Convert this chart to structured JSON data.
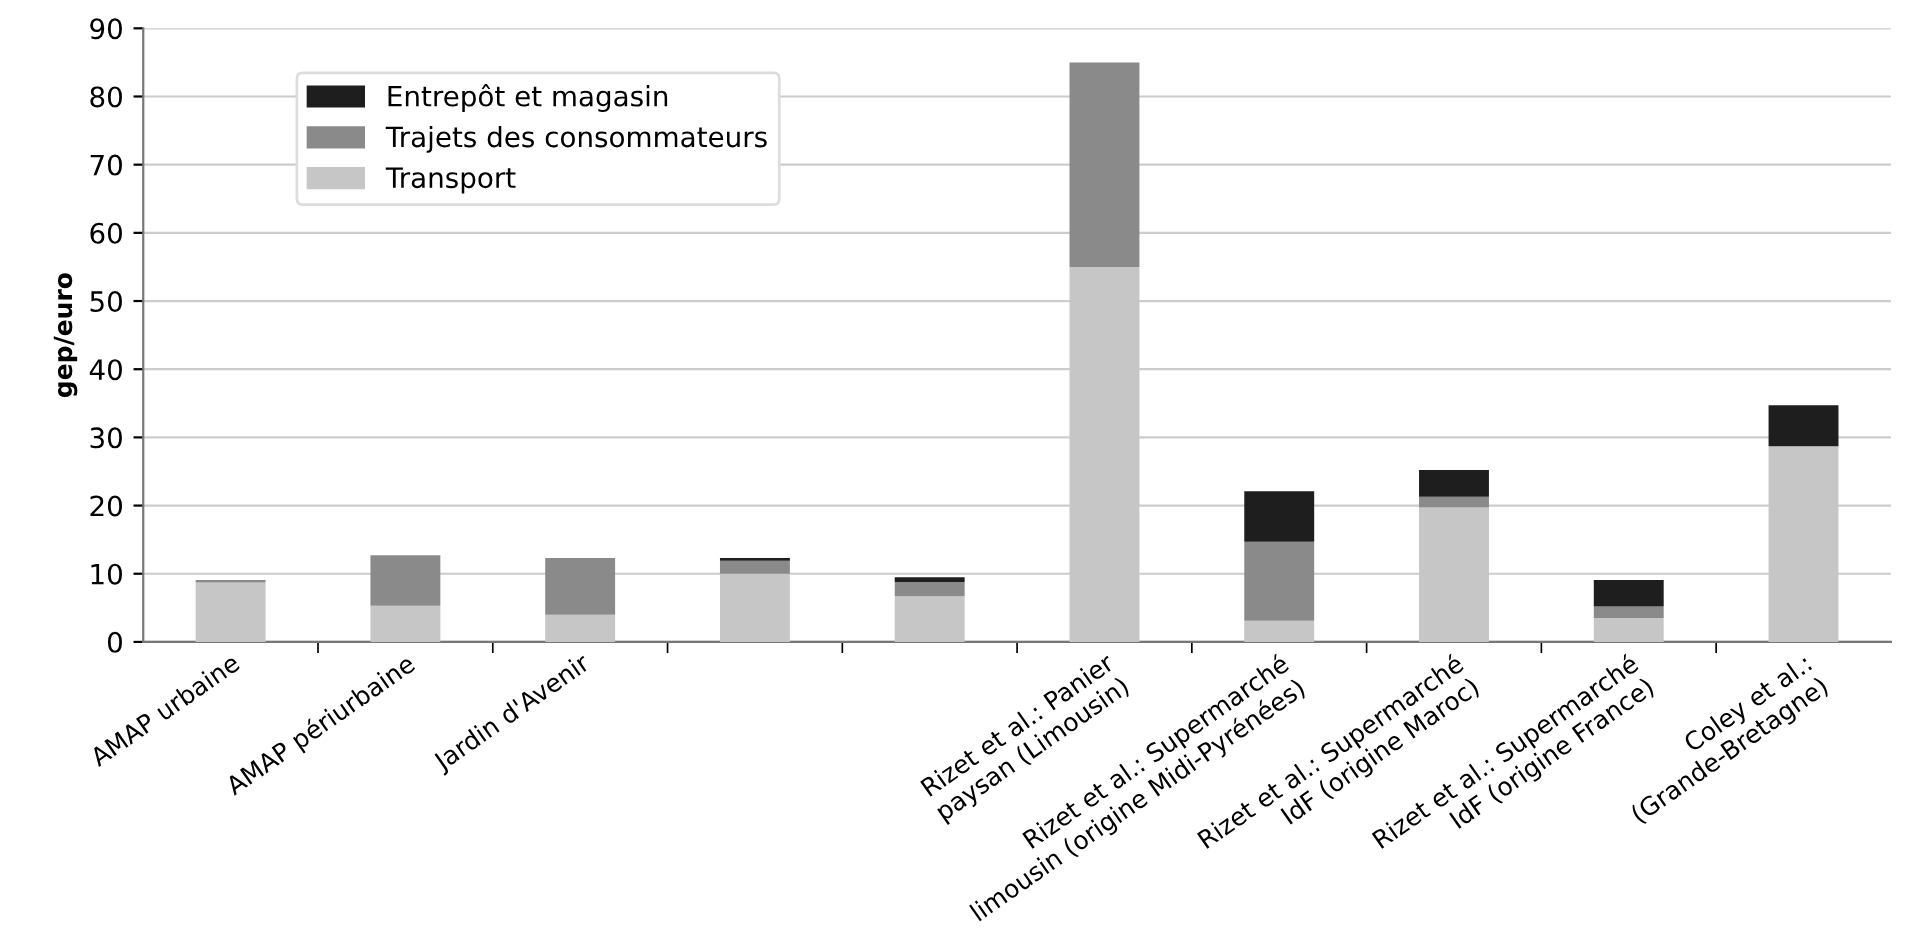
{
  "chart_data": {
    "type": "bar",
    "stacked": true,
    "ylabel": "gep/euro",
    "categories": [
      "AMAP urbaine",
      "AMAP périurbaine",
      "Jardin d'Avenir",
      null,
      null,
      "Rizet et al.: Panier\npaysan (Limousin)",
      "Rizet et al.: Supermarché\nlimousin (origine Midi-Pyrénées)",
      "Rizet et al.: Supermarché\nIdF (origine Maroc)",
      "Rizet et al.: Supermarché\nIdF (origine France)",
      "Coley et al.:\n(Grande-Bretagne)"
    ],
    "series": [
      {
        "name": "Transport",
        "color": "#c6c6c6",
        "values": [
          8.7,
          5.3,
          4,
          10,
          6.7,
          55,
          3.1,
          19.7,
          3.5,
          28.7
        ]
      },
      {
        "name": "Trajets des consommateurs",
        "color": "#8a8a8a",
        "values": [
          0.4,
          7.4,
          8.3,
          1.9,
          2.1,
          30,
          11.6,
          1.6,
          1.7,
          0
        ]
      },
      {
        "name": "Entrepôt et magasin",
        "color": "#1e1e1e",
        "values": [
          0,
          0,
          0,
          0.4,
          0.7,
          0,
          7.4,
          3.9,
          3.9,
          6
        ]
      }
    ],
    "ylim": [
      0,
      90
    ],
    "yticks": [
      0,
      10,
      20,
      30,
      40,
      50,
      60,
      70,
      80,
      90
    ],
    "grid": "y",
    "legend": "top left"
  }
}
